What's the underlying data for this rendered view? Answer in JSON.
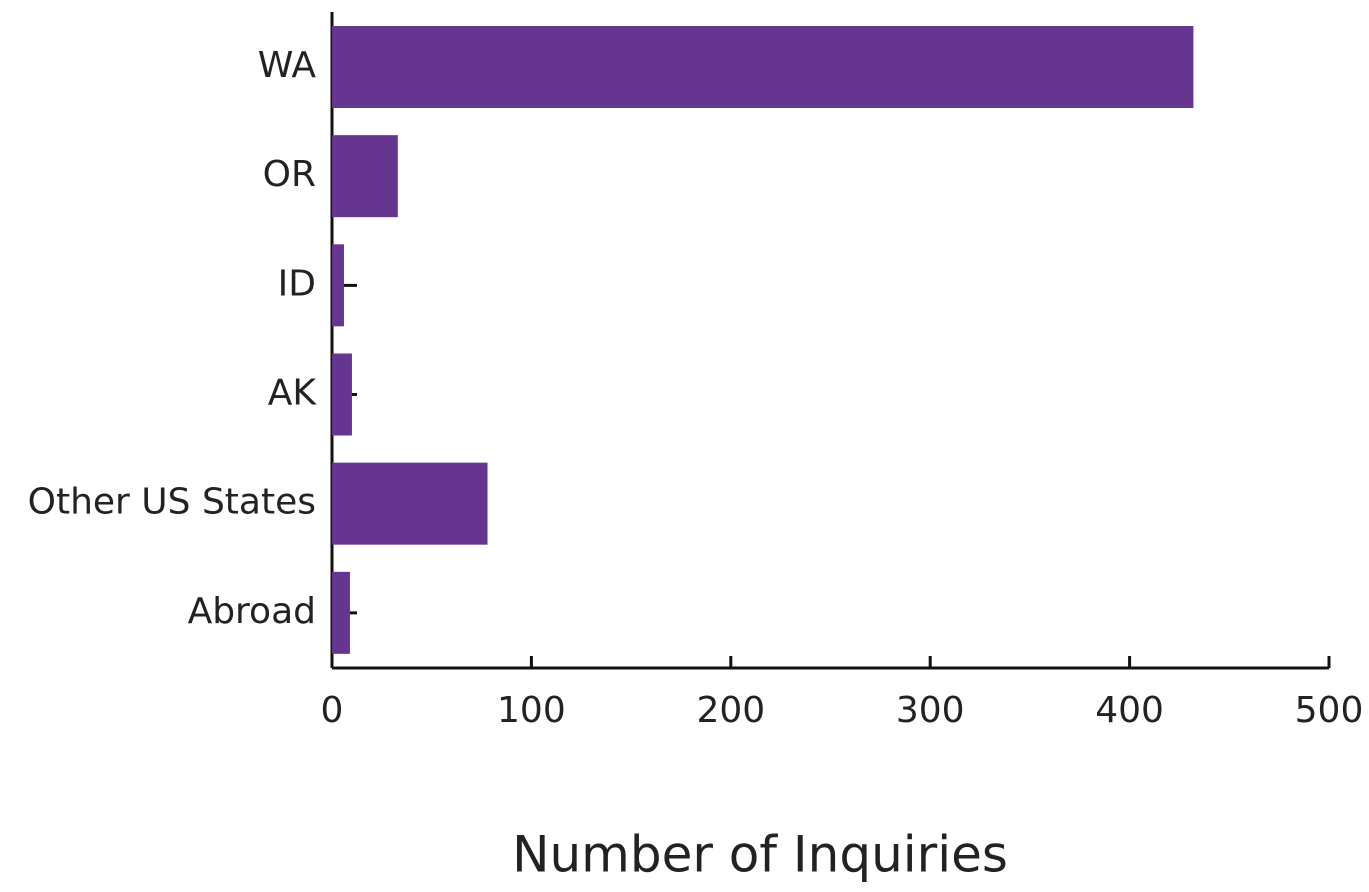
{
  "chart_data": {
    "type": "bar",
    "orientation": "horizontal",
    "xlabel": "Number of Inquiries",
    "categories": [
      "WA",
      "OR",
      "ID",
      "AK",
      "Other US States",
      "Abroad"
    ],
    "values": [
      432,
      33,
      6,
      10,
      78,
      9
    ],
    "color": "#65358f",
    "xlim": [
      0,
      500
    ],
    "xticks": [
      0,
      100,
      200,
      300,
      400,
      500
    ],
    "grid": false
  }
}
